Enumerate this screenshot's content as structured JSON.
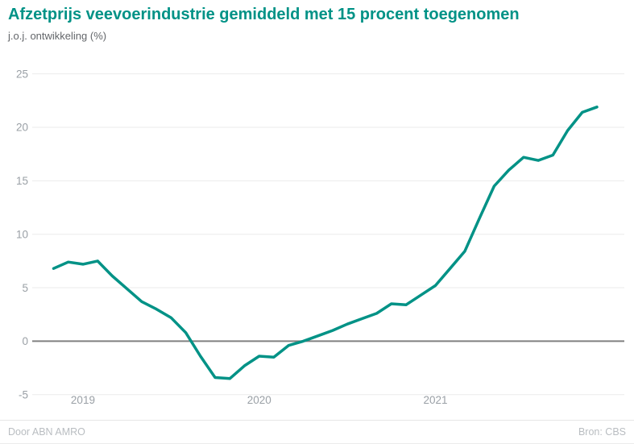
{
  "header": {
    "title": "Afzetprijs veevoerindustrie gemiddeld met 15 procent toegenomen",
    "subtitle": "j.o.j. ontwikkeling (%)"
  },
  "footer": {
    "left": "Door ABN AMRO",
    "right": "Bron: CBS"
  },
  "colors": {
    "accent": "#009286",
    "line": "#009286",
    "grid": "#ebebeb",
    "zero_line": "#808080",
    "axis_text": "#9aa0a6",
    "footer_text": "#b9bdc1",
    "subtitle_text": "#63666a"
  },
  "chart_data": {
    "type": "line",
    "title": "Afzetprijs veevoerindustrie gemiddeld met 15 procent toegenomen",
    "ylabel": "j.o.j. ontwikkeling (%)",
    "xlabel": "",
    "ylim": [
      -5,
      25
    ],
    "yticks": [
      25,
      20,
      15,
      10,
      5,
      0,
      -5
    ],
    "xticks": [
      {
        "label": "2019",
        "index": 2
      },
      {
        "label": "2020",
        "index": 14
      },
      {
        "label": "2021",
        "index": 26
      }
    ],
    "grid": true,
    "legend": false,
    "zero_line": 0,
    "x": [
      "2018-11",
      "2018-12",
      "2019-01",
      "2019-02",
      "2019-03",
      "2019-04",
      "2019-05",
      "2019-06",
      "2019-07",
      "2019-08",
      "2019-09",
      "2019-10",
      "2019-11",
      "2019-12",
      "2020-01",
      "2020-02",
      "2020-03",
      "2020-04",
      "2020-05",
      "2020-06",
      "2020-07",
      "2020-08",
      "2020-09",
      "2020-10",
      "2020-11",
      "2020-12",
      "2021-01",
      "2021-02",
      "2021-03",
      "2021-04",
      "2021-05",
      "2021-06",
      "2021-07",
      "2021-08",
      "2021-09",
      "2021-10",
      "2021-11",
      "2021-12"
    ],
    "series": [
      {
        "name": "j.o.j. ontwikkeling (%)",
        "color": "#009286",
        "values": [
          6.8,
          7.4,
          7.2,
          7.5,
          6.1,
          4.9,
          3.7,
          3.0,
          2.2,
          0.8,
          -1.4,
          -3.4,
          -3.5,
          -2.3,
          -1.4,
          -1.5,
          -0.4,
          0.0,
          0.5,
          1.0,
          1.6,
          2.1,
          2.6,
          3.5,
          3.4,
          4.3,
          5.2,
          6.8,
          8.4,
          11.5,
          14.5,
          16.0,
          17.2,
          16.9,
          17.4,
          19.7,
          21.4,
          21.9
        ]
      }
    ]
  }
}
